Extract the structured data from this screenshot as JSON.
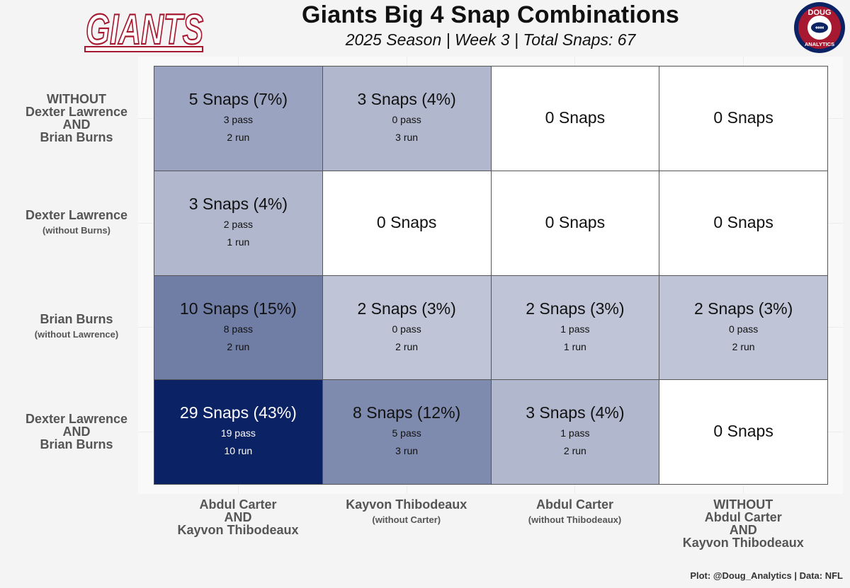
{
  "header": {
    "title": "Giants Big 4 Snap Combinations",
    "subtitle": "2025 Season | Week 3 | Total Snaps: 67",
    "logo_left_text": "GIANTS",
    "logo_right_top_text": "DOUG",
    "logo_right_bottom_text": "ANALYTICS"
  },
  "caption": "Plot: @Doug_Analytics | Data: NFL",
  "colors": {
    "max_fill": "#0b2265",
    "min_fill": "#ffffff",
    "border": "#555555",
    "axis_label": "#555555"
  },
  "chart_data": {
    "type": "heatmap",
    "title": "Giants Big 4 Snap Combinations",
    "subtitle": "2025 Season | Week 3 | Total Snaps: 67",
    "total_snaps": 67,
    "rows": [
      {
        "main": [
          "WITHOUT",
          "Dexter Lawrence",
          "AND",
          "Brian Burns"
        ],
        "sub": ""
      },
      {
        "main": [
          "Dexter Lawrence"
        ],
        "sub": "(without Burns)"
      },
      {
        "main": [
          "Brian Burns"
        ],
        "sub": "(without Lawrence)"
      },
      {
        "main": [
          "Dexter Lawrence",
          "AND",
          "Brian Burns"
        ],
        "sub": ""
      }
    ],
    "columns": [
      {
        "main": [
          "Abdul Carter",
          "AND",
          "Kayvon Thibodeaux"
        ],
        "sub": ""
      },
      {
        "main": [
          "Kayvon Thibodeaux"
        ],
        "sub": "(without Carter)"
      },
      {
        "main": [
          "Abdul Carter"
        ],
        "sub": "(without Thibodeaux)"
      },
      {
        "main": [
          "WITHOUT",
          "Abdul Carter",
          "AND",
          "Kayvon Thibodeaux"
        ],
        "sub": ""
      }
    ],
    "cells": [
      [
        {
          "snaps": 5,
          "pct": 7,
          "pass": 3,
          "run": 2,
          "label": "5 Snaps (7%)",
          "pass_label": "3 pass",
          "run_label": "2 run"
        },
        {
          "snaps": 3,
          "pct": 4,
          "pass": 0,
          "run": 3,
          "label": "3 Snaps (4%)",
          "pass_label": "0 pass",
          "run_label": "3 run"
        },
        {
          "snaps": 0,
          "label": "0 Snaps"
        },
        {
          "snaps": 0,
          "label": "0 Snaps"
        }
      ],
      [
        {
          "snaps": 3,
          "pct": 4,
          "pass": 2,
          "run": 1,
          "label": "3 Snaps (4%)",
          "pass_label": "2 pass",
          "run_label": "1 run"
        },
        {
          "snaps": 0,
          "label": "0 Snaps"
        },
        {
          "snaps": 0,
          "label": "0 Snaps"
        },
        {
          "snaps": 0,
          "label": "0 Snaps"
        }
      ],
      [
        {
          "snaps": 10,
          "pct": 15,
          "pass": 8,
          "run": 2,
          "label": "10 Snaps (15%)",
          "pass_label": "8 pass",
          "run_label": "2 run"
        },
        {
          "snaps": 2,
          "pct": 3,
          "pass": 0,
          "run": 2,
          "label": "2 Snaps (3%)",
          "pass_label": "0 pass",
          "run_label": "2 run"
        },
        {
          "snaps": 2,
          "pct": 3,
          "pass": 1,
          "run": 1,
          "label": "2 Snaps (3%)",
          "pass_label": "1 pass",
          "run_label": "1 run"
        },
        {
          "snaps": 2,
          "pct": 3,
          "pass": 0,
          "run": 2,
          "label": "2 Snaps (3%)",
          "pass_label": "0 pass",
          "run_label": "2 run"
        }
      ],
      [
        {
          "snaps": 29,
          "pct": 43,
          "pass": 19,
          "run": 10,
          "label": "29 Snaps (43%)",
          "pass_label": "19 pass",
          "run_label": "10 run"
        },
        {
          "snaps": 8,
          "pct": 12,
          "pass": 5,
          "run": 3,
          "label": "8 Snaps (12%)",
          "pass_label": "5 pass",
          "run_label": "3 run"
        },
        {
          "snaps": 3,
          "pct": 4,
          "pass": 1,
          "run": 2,
          "label": "3 Snaps (4%)",
          "pass_label": "1 pass",
          "run_label": "2 run"
        },
        {
          "snaps": 0,
          "label": "0 Snaps"
        }
      ]
    ]
  }
}
